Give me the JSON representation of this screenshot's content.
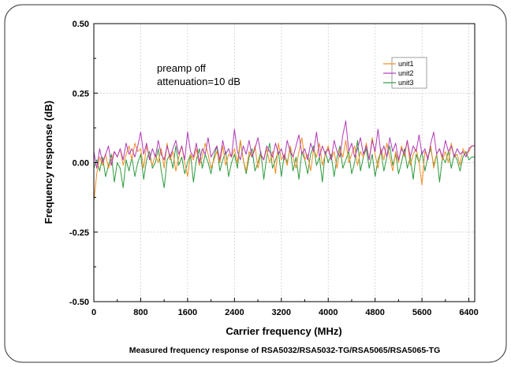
{
  "chart_data": {
    "type": "line",
    "xlabel": "Carrier frequency (MHz)",
    "ylabel": "Frequency response (dB)",
    "xlim": [
      0,
      6500
    ],
    "ylim": [
      -0.5,
      0.5
    ],
    "xticks": [
      "0",
      "800",
      "1600",
      "2400",
      "3200",
      "4000",
      "4800",
      "5600",
      "6400"
    ],
    "yticks": [
      "0.50",
      "0.25",
      "0.00",
      "-0.25",
      "-0.50"
    ],
    "grid": true,
    "legend_position": "top-right",
    "annotations": [
      "preamp off",
      "attenuation=10 dB"
    ],
    "caption": "Measured frequency response of RSA5032/RSA5032-TG/RSA5065/RSA5065-TG",
    "x": [
      0,
      50,
      100,
      150,
      200,
      250,
      300,
      350,
      400,
      450,
      500,
      550,
      600,
      650,
      700,
      750,
      800,
      850,
      900,
      950,
      1000,
      1050,
      1100,
      1150,
      1200,
      1250,
      1300,
      1350,
      1400,
      1450,
      1500,
      1550,
      1600,
      1650,
      1700,
      1750,
      1800,
      1850,
      1900,
      1950,
      2000,
      2050,
      2100,
      2150,
      2200,
      2250,
      2300,
      2350,
      2400,
      2450,
      2500,
      2550,
      2600,
      2650,
      2700,
      2750,
      2800,
      2850,
      2900,
      2950,
      3000,
      3050,
      3100,
      3150,
      3200,
      3250,
      3300,
      3350,
      3400,
      3450,
      3500,
      3550,
      3600,
      3650,
      3700,
      3750,
      3800,
      3850,
      3900,
      3950,
      4000,
      4050,
      4100,
      4150,
      4200,
      4250,
      4300,
      4350,
      4400,
      4450,
      4500,
      4550,
      4600,
      4650,
      4700,
      4750,
      4800,
      4850,
      4900,
      4950,
      5000,
      5050,
      5100,
      5150,
      5200,
      5250,
      5300,
      5350,
      5400,
      5450,
      5500,
      5550,
      5600,
      5650,
      5700,
      5750,
      5800,
      5850,
      5900,
      5950,
      6000,
      6050,
      6100,
      6150,
      6200,
      6250,
      6300,
      6350,
      6400,
      6450,
      6500
    ],
    "series": [
      {
        "name": "unit1",
        "color": "#f28c1e",
        "values": [
          -0.14,
          -0.04,
          0.02,
          -0.01,
          0.03,
          -0.02,
          0.01,
          0.04,
          0.02,
          0.05,
          -0.01,
          0.03,
          0.06,
          0.01,
          0.07,
          0.04,
          0.05,
          -0.02,
          0.06,
          0.02,
          -0.01,
          0.03,
          0.0,
          0.05,
          -0.02,
          0.07,
          0.01,
          0.04,
          -0.03,
          0.02,
          0.06,
          0.0,
          -0.05,
          0.03,
          0.01,
          0.05,
          -0.01,
          0.02,
          0.07,
          0.03,
          -0.02,
          0.01,
          0.04,
          0.0,
          0.06,
          -0.01,
          0.03,
          0.02,
          0.05,
          0.0,
          0.08,
          0.01,
          -0.03,
          0.04,
          0.02,
          0.06,
          -0.02,
          0.03,
          0.01,
          0.05,
          0.0,
          0.04,
          -0.04,
          0.07,
          0.01,
          0.03,
          -0.01,
          0.06,
          0.02,
          -0.02,
          0.04,
          0.09,
          0.01,
          0.03,
          -0.03,
          0.05,
          0.02,
          0.07,
          -0.01,
          0.03,
          0.06,
          0.01,
          0.04,
          -0.02,
          0.05,
          0.02,
          0.08,
          0.0,
          0.03,
          0.06,
          -0.01,
          0.04,
          0.02,
          0.07,
          0.01,
          0.09,
          0.03,
          -0.02,
          0.05,
          0.01,
          0.07,
          0.02,
          -0.03,
          0.04,
          0.0,
          0.06,
          0.02,
          0.08,
          -0.01,
          0.03,
          0.05,
          0.0,
          -0.08,
          0.04,
          0.02,
          0.06,
          -0.02,
          0.03,
          0.05,
          0.01,
          0.04,
          0.0,
          0.07,
          0.02,
          0.03,
          -0.01,
          0.05,
          0.03,
          0.04,
          0.06,
          0.06
        ]
      },
      {
        "name": "unit2",
        "color": "#b03ab8",
        "values": [
          0.04,
          -0.02,
          0.05,
          0.0,
          0.03,
          0.06,
          -0.01,
          0.04,
          0.02,
          0.05,
          0.01,
          0.07,
          0.03,
          0.05,
          0.02,
          0.06,
          0.11,
          0.03,
          0.07,
          0.01,
          0.05,
          0.02,
          0.08,
          0.03,
          0.01,
          0.06,
          0.02,
          0.05,
          0.08,
          0.03,
          0.06,
          0.01,
          0.11,
          0.04,
          0.02,
          0.07,
          0.0,
          0.05,
          0.03,
          0.09,
          0.02,
          0.04,
          0.06,
          0.01,
          0.08,
          0.03,
          0.05,
          0.02,
          0.12,
          0.04,
          0.01,
          0.06,
          0.03,
          0.08,
          0.02,
          0.05,
          0.09,
          0.03,
          0.01,
          0.06,
          0.04,
          0.02,
          0.07,
          0.03,
          0.05,
          0.01,
          0.08,
          0.04,
          0.02,
          0.06,
          0.1,
          0.03,
          0.05,
          0.01,
          0.07,
          0.04,
          0.11,
          0.02,
          0.06,
          0.03,
          0.05,
          0.01,
          0.08,
          0.04,
          0.02,
          0.1,
          0.15,
          0.04,
          0.07,
          0.02,
          0.05,
          0.09,
          0.03,
          0.06,
          0.01,
          0.08,
          0.04,
          0.12,
          0.03,
          0.06,
          0.02,
          0.09,
          0.04,
          0.07,
          0.01,
          0.05,
          0.03,
          0.08,
          0.02,
          0.06,
          0.04,
          0.1,
          0.03,
          0.05,
          0.01,
          0.07,
          0.11,
          0.03,
          0.05,
          0.02,
          0.08,
          0.04,
          0.06,
          0.02,
          0.05,
          0.03,
          0.04,
          0.02,
          0.05,
          0.06,
          0.06
        ]
      },
      {
        "name": "unit3",
        "color": "#2e9a3c",
        "values": [
          -0.02,
          0.01,
          -0.03,
          0.02,
          -0.05,
          -0.01,
          0.03,
          -0.07,
          0.0,
          -0.02,
          -0.09,
          0.01,
          -0.03,
          0.02,
          -0.05,
          0.0,
          0.03,
          -0.06,
          0.01,
          0.04,
          -0.02,
          0.0,
          0.05,
          -0.03,
          -0.09,
          0.01,
          0.03,
          -0.02,
          0.06,
          -0.01,
          0.02,
          -0.04,
          0.0,
          0.03,
          -0.07,
          0.01,
          0.05,
          -0.02,
          0.03,
          0.0,
          -0.04,
          0.02,
          0.06,
          -0.03,
          0.01,
          0.04,
          -0.05,
          0.0,
          0.03,
          -0.02,
          0.08,
          0.01,
          -0.04,
          0.02,
          0.05,
          -0.03,
          0.0,
          0.04,
          -0.06,
          0.02,
          0.07,
          -0.02,
          0.01,
          0.04,
          -0.05,
          0.03,
          0.0,
          0.05,
          -0.03,
          0.02,
          -0.06,
          0.04,
          0.01,
          -0.04,
          0.03,
          0.06,
          -0.01,
          0.02,
          -0.07,
          0.04,
          0.0,
          0.03,
          -0.05,
          0.02,
          0.06,
          -0.02,
          0.01,
          0.04,
          -0.04,
          0.0,
          0.08,
          -0.03,
          0.02,
          0.05,
          -0.02,
          0.03,
          -0.05,
          0.01,
          0.04,
          -0.03,
          0.02,
          0.06,
          -0.01,
          0.03,
          -0.04,
          0.0,
          0.05,
          -0.02,
          0.02,
          -0.06,
          0.03,
          0.0,
          0.04,
          -0.03,
          0.02,
          0.05,
          -0.01,
          0.03,
          -0.07,
          0.02,
          0.0,
          0.04,
          -0.02,
          0.03,
          0.01,
          -0.03,
          0.02,
          0.04,
          0.01,
          0.02,
          0.02
        ]
      }
    ]
  }
}
